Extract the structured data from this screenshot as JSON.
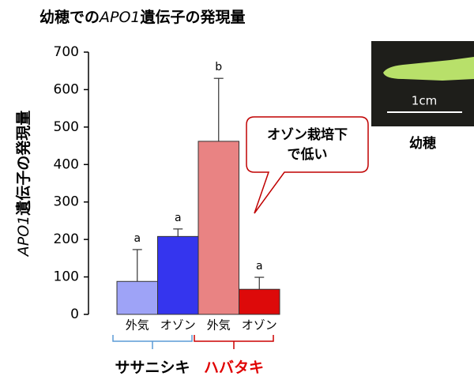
{
  "chart_data": {
    "type": "bar",
    "title_parts": [
      "幼穂での",
      "APO1",
      "遺伝子の発現量"
    ],
    "y_label_parts": [
      "APO1",
      "遺伝子の発現量"
    ],
    "categories": [
      "外気",
      "オゾン",
      "外気",
      "オゾン"
    ],
    "values": [
      88,
      208,
      462,
      67
    ],
    "errors": [
      85,
      20,
      168,
      32
    ],
    "significance": [
      "a",
      "a",
      "b",
      "a"
    ],
    "colors": [
      "#9ea3f7",
      "#3535ee",
      "#e98383",
      "#dd0a0a"
    ],
    "groups": [
      {
        "name": "ササニシキ",
        "color": "#5b9bd5",
        "label_color": "#000000"
      },
      {
        "name": "ハバタキ",
        "color": "#cc0000",
        "label_color": "#e00000"
      }
    ],
    "ylim": [
      0,
      700
    ],
    "yticks": [
      0,
      100,
      200,
      300,
      400,
      500,
      600,
      700
    ],
    "annotation": [
      "オゾン栽培下",
      "で低い"
    ],
    "image": {
      "scale_label": "1cm",
      "caption": "幼穂"
    }
  }
}
